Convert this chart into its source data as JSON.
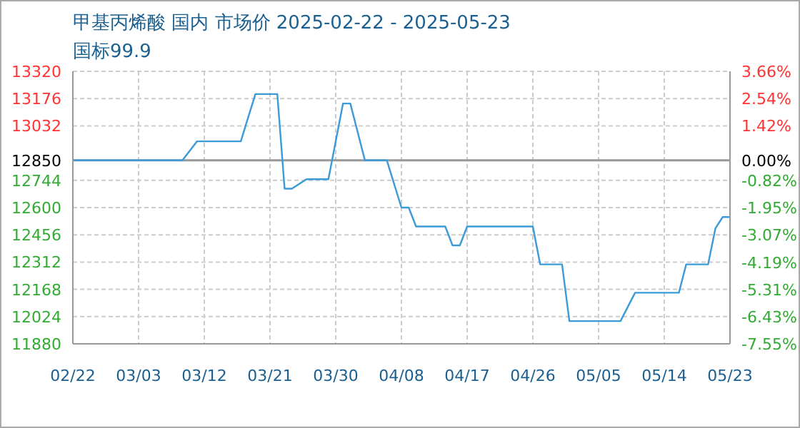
{
  "chart_data": {
    "type": "line",
    "title": "甲基丙烯酸 国内 市场价 2025-02-22 - 2025-05-23",
    "subtitle": "国标99.9",
    "x": [
      "2025-02-22",
      "2025-03-09",
      "2025-03-11",
      "2025-03-17",
      "2025-03-19",
      "2025-03-22",
      "2025-03-23",
      "2025-03-24",
      "2025-03-26",
      "2025-03-29",
      "2025-03-31",
      "2025-04-01",
      "2025-04-03",
      "2025-04-06",
      "2025-04-08",
      "2025-04-09",
      "2025-04-10",
      "2025-04-14",
      "2025-04-15",
      "2025-04-16",
      "2025-04-17",
      "2025-04-26",
      "2025-04-27",
      "2025-04-30",
      "2025-05-01",
      "2025-05-08",
      "2025-05-10",
      "2025-05-16",
      "2025-05-17",
      "2025-05-20",
      "2025-05-21",
      "2025-05-22",
      "2025-05-23"
    ],
    "series": [
      {
        "color": "#3b9ad8",
        "values": [
          12850,
          12850,
          12950,
          12950,
          13200,
          13200,
          12700,
          12700,
          12750,
          12750,
          13150,
          13150,
          12850,
          12850,
          12600,
          12600,
          12500,
          12500,
          12400,
          12400,
          12500,
          12500,
          12300,
          12300,
          12000,
          12000,
          12150,
          12150,
          12300,
          12300,
          12490,
          12550,
          12550
        ]
      }
    ],
    "xlim": [
      "2025-02-22",
      "2025-05-23"
    ],
    "xticks": [
      {
        "value": "2025-02-22",
        "label": "02/22"
      },
      {
        "value": "2025-03-03",
        "label": "03/03"
      },
      {
        "value": "2025-03-12",
        "label": "03/12"
      },
      {
        "value": "2025-03-21",
        "label": "03/21"
      },
      {
        "value": "2025-03-30",
        "label": "03/30"
      },
      {
        "value": "2025-04-08",
        "label": "04/08"
      },
      {
        "value": "2025-04-17",
        "label": "04/17"
      },
      {
        "value": "2025-04-26",
        "label": "04/26"
      },
      {
        "value": "2025-05-05",
        "label": "05/05"
      },
      {
        "value": "2025-05-14",
        "label": "05/14"
      },
      {
        "value": "2025-05-23",
        "label": "05/23"
      }
    ],
    "ylim": [
      11880,
      13320
    ],
    "yticks": [
      11880,
      12024,
      12168,
      12312,
      12456,
      12600,
      12744,
      12850,
      13032,
      13176,
      13320
    ],
    "y2lim": [
      -7.55,
      3.66
    ],
    "y2ticks": [
      {
        "value": -7.55,
        "label": "-7.55%"
      },
      {
        "value": -6.43,
        "label": "-6.43%"
      },
      {
        "value": -5.31,
        "label": "-5.31%"
      },
      {
        "value": -4.19,
        "label": "-4.19%"
      },
      {
        "value": -3.07,
        "label": "-3.07%"
      },
      {
        "value": -1.95,
        "label": "-1.95%"
      },
      {
        "value": -0.82,
        "label": "-0.82%"
      },
      {
        "value": 0,
        "label": "0.00%"
      },
      {
        "value": 1.42,
        "label": "1.42%"
      },
      {
        "value": 2.54,
        "label": "2.54%"
      },
      {
        "value": 3.66,
        "label": "3.66%"
      }
    ],
    "ref_lines": [
      {
        "axis": "y",
        "value": 12850,
        "color": "#999999"
      }
    ],
    "grid": true,
    "marker": "none",
    "line_style": "solid"
  }
}
